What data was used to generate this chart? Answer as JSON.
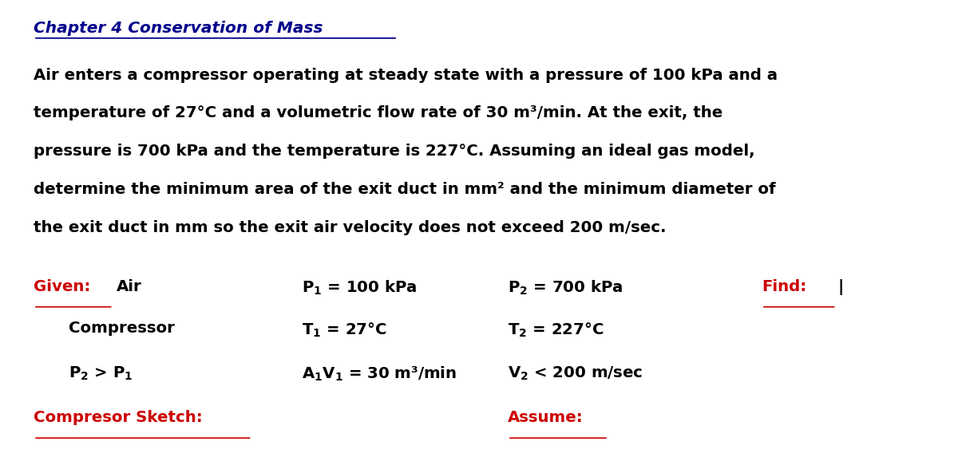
{
  "background_color": "#ffffff",
  "title": "Chapter 4 Conservation of Mass",
  "red_color": "#CC0000",
  "black_color": "#000000",
  "dark_blue": "#00008B",
  "body_lines": [
    "Air enters a compressor operating at steady state with a pressure of 100 kPa and a",
    "temperature of 27°C and a volumetric flow rate of 30 m³/min. At the exit, the",
    "pressure is 700 kPa and the temperature is 227°C. Assuming an ideal gas model,",
    "determine the minimum area of the exit duct in mm² and the minimum diameter of",
    "the exit duct in mm so the exit air velocity does not exceed 200 m/sec."
  ]
}
